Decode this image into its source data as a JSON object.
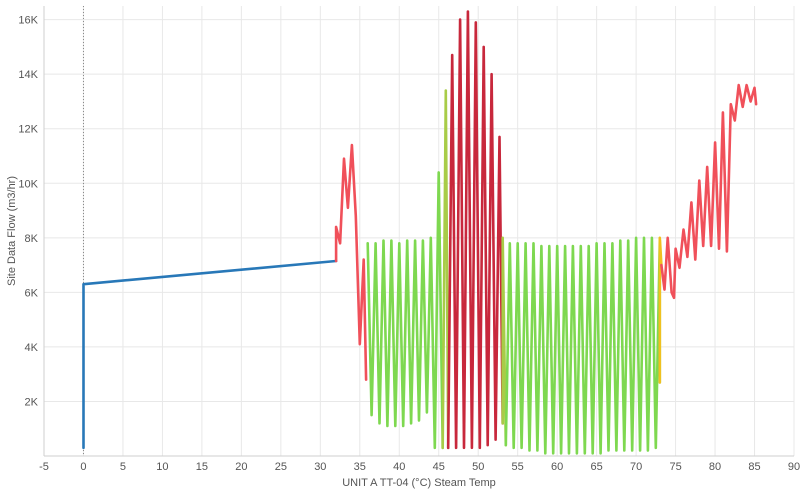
{
  "chart_data": {
    "type": "line",
    "xlabel": "UNIT A TT-04 (°C) Steam Temp",
    "ylabel": "Site Data Flow (m3/hr)",
    "xlim": [
      -5,
      90
    ],
    "ylim": [
      0,
      16500
    ],
    "x_ticks": [
      -5,
      0,
      5,
      10,
      15,
      20,
      25,
      30,
      35,
      40,
      45,
      50,
      55,
      60,
      65,
      70,
      75,
      80,
      85,
      90
    ],
    "x_tick_labels": [
      "-5",
      "0",
      "5",
      "10",
      "15",
      "20",
      "25",
      "30",
      "35",
      "40",
      "45",
      "50",
      "55",
      "60",
      "65",
      "70",
      "75",
      "80",
      "85",
      "90"
    ],
    "y_ticks": [
      2000,
      4000,
      6000,
      8000,
      10000,
      12000,
      14000,
      16000
    ],
    "y_tick_labels": [
      "2K",
      "4K",
      "6K",
      "8K",
      "10K",
      "12K",
      "14K",
      "16K"
    ],
    "grid": true,
    "zero_line_x": 0,
    "colors": {
      "blue": "#2878b8",
      "red": "#f0505a",
      "darkred": "#c8283c",
      "green": "#7ed850",
      "yellowgreen": "#a8cc48",
      "yellow": "#f0c020"
    },
    "series": [
      {
        "color": "blue",
        "points": [
          [
            0,
            300
          ],
          [
            0,
            6300
          ],
          [
            32,
            7150
          ]
        ]
      },
      {
        "color": "red",
        "points": [
          [
            32,
            7150
          ],
          [
            32,
            8400
          ],
          [
            32.5,
            7800
          ],
          [
            33,
            10900
          ],
          [
            33.5,
            9100
          ],
          [
            34,
            11400
          ],
          [
            34.5,
            8800
          ],
          [
            35,
            4100
          ],
          [
            35.5,
            7200
          ],
          [
            35.8,
            2800
          ]
        ]
      },
      {
        "color": "green",
        "points": [
          [
            36,
            7800
          ],
          [
            36.5,
            1500
          ],
          [
            37,
            7800
          ],
          [
            37.5,
            1200
          ],
          [
            38,
            7900
          ],
          [
            38.5,
            1100
          ],
          [
            39,
            7900
          ],
          [
            39.5,
            1100
          ],
          [
            40,
            7800
          ],
          [
            40.5,
            1100
          ],
          [
            41,
            7900
          ],
          [
            41.5,
            1200
          ],
          [
            42,
            7900
          ],
          [
            42.5,
            1300
          ],
          [
            43,
            7900
          ],
          [
            43.5,
            1600
          ],
          [
            44,
            8000
          ],
          [
            44.5,
            300
          ],
          [
            45,
            10400
          ],
          [
            45.5,
            300
          ]
        ]
      },
      {
        "color": "yellowgreen",
        "points": [
          [
            45.5,
            300
          ],
          [
            45.9,
            13400
          ],
          [
            46.2,
            300
          ]
        ]
      },
      {
        "color": "darkred",
        "points": [
          [
            46.2,
            300
          ],
          [
            46.7,
            14700
          ],
          [
            47.2,
            300
          ],
          [
            47.7,
            16000
          ],
          [
            48.2,
            300
          ],
          [
            48.7,
            16300
          ],
          [
            49.2,
            300
          ],
          [
            49.7,
            15900
          ],
          [
            50.2,
            300
          ],
          [
            50.7,
            15000
          ],
          [
            51.2,
            400
          ],
          [
            51.7,
            14000
          ],
          [
            52.2,
            600
          ],
          [
            52.7,
            11700
          ],
          [
            53.1,
            1200
          ]
        ]
      },
      {
        "color": "yellowgreen",
        "points": [
          [
            53.1,
            1200
          ],
          [
            53.1,
            8000
          ],
          [
            53.5,
            400
          ]
        ]
      },
      {
        "color": "green",
        "points": [
          [
            53.5,
            400
          ],
          [
            54,
            7800
          ],
          [
            54.5,
            300
          ],
          [
            55,
            7800
          ],
          [
            55.5,
            300
          ],
          [
            56,
            7800
          ],
          [
            56.5,
            200
          ],
          [
            57,
            7800
          ],
          [
            57.5,
            200
          ],
          [
            58,
            7700
          ],
          [
            58.5,
            100
          ],
          [
            59,
            7700
          ],
          [
            59.5,
            100
          ],
          [
            60,
            7700
          ],
          [
            60.5,
            100
          ],
          [
            61,
            7700
          ],
          [
            61.5,
            100
          ],
          [
            62,
            7700
          ],
          [
            62.5,
            100
          ],
          [
            63,
            7700
          ],
          [
            63.5,
            100
          ],
          [
            64,
            7700
          ],
          [
            64.5,
            100
          ],
          [
            65,
            7800
          ],
          [
            65.5,
            100
          ],
          [
            66,
            7800
          ],
          [
            66.5,
            200
          ],
          [
            67,
            7800
          ],
          [
            67.5,
            200
          ],
          [
            68,
            7900
          ],
          [
            68.5,
            200
          ],
          [
            69,
            7900
          ],
          [
            69.5,
            200
          ],
          [
            70,
            8000
          ],
          [
            70.5,
            200
          ],
          [
            71,
            8000
          ],
          [
            71.5,
            200
          ],
          [
            72,
            8000
          ],
          [
            72.5,
            300
          ],
          [
            73,
            7900
          ],
          [
            73,
            2700
          ]
        ]
      },
      {
        "color": "yellow",
        "points": [
          [
            73,
            2700
          ],
          [
            73,
            8000
          ],
          [
            73.2,
            7000
          ]
        ]
      },
      {
        "color": "red",
        "points": [
          [
            73.2,
            7000
          ],
          [
            73.6,
            6100
          ],
          [
            74,
            8000
          ],
          [
            74.5,
            6000
          ],
          [
            74.8,
            5800
          ],
          [
            75,
            7600
          ],
          [
            75.5,
            6900
          ],
          [
            76,
            8300
          ],
          [
            76.5,
            7300
          ],
          [
            77,
            9300
          ],
          [
            77.5,
            7200
          ],
          [
            78,
            10100
          ],
          [
            78.5,
            7700
          ],
          [
            79,
            10600
          ],
          [
            79.5,
            7700
          ],
          [
            80,
            11500
          ],
          [
            80.5,
            7600
          ],
          [
            81,
            12600
          ],
          [
            81.5,
            7500
          ],
          [
            82,
            12900
          ],
          [
            82.5,
            12300
          ],
          [
            83,
            13600
          ],
          [
            83.5,
            12800
          ],
          [
            84,
            13600
          ],
          [
            84.5,
            13000
          ],
          [
            85,
            13500
          ],
          [
            85.2,
            12900
          ]
        ]
      }
    ]
  }
}
